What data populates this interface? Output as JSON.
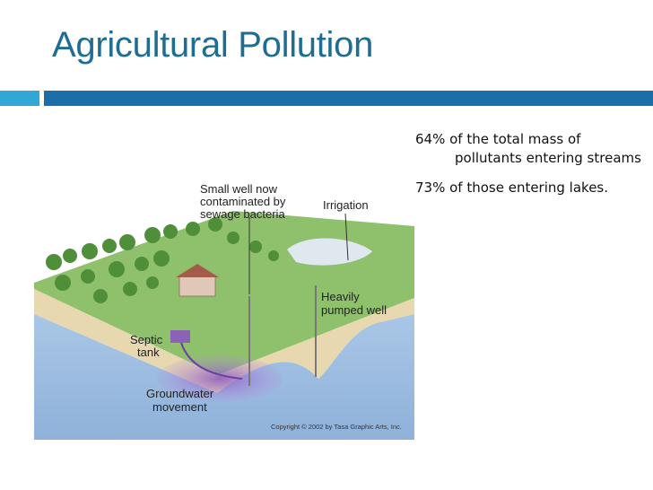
{
  "slide": {
    "title": "Agricultural Pollution",
    "bullets": [
      "64% of the total mass of pollutants entering streams",
      "73% of those entering lakes."
    ]
  },
  "diagram": {
    "labels": {
      "small_well_line1": "Small well now",
      "small_well_line2": "contaminated by",
      "small_well_line3": "sewage bacteria",
      "irrigation": "Irrigation",
      "heavily_line1": "Heavily",
      "heavily_line2": "pumped well",
      "septic_line1": "Septic",
      "septic_line2": "tank",
      "groundwater_line1": "Groundwater",
      "groundwater_line2": "movement"
    },
    "copyright": "Copyright © 2002 by Tasa Graphic Arts, Inc."
  },
  "colors": {
    "title": "#1f6e91",
    "accent_small": "#30a7d6",
    "accent_bar": "#1a6fa8",
    "grass": "#8bbf6a",
    "soil": "#e6d8b4",
    "groundwater": "#9fbfe0",
    "plume": "#9a6cc7"
  }
}
